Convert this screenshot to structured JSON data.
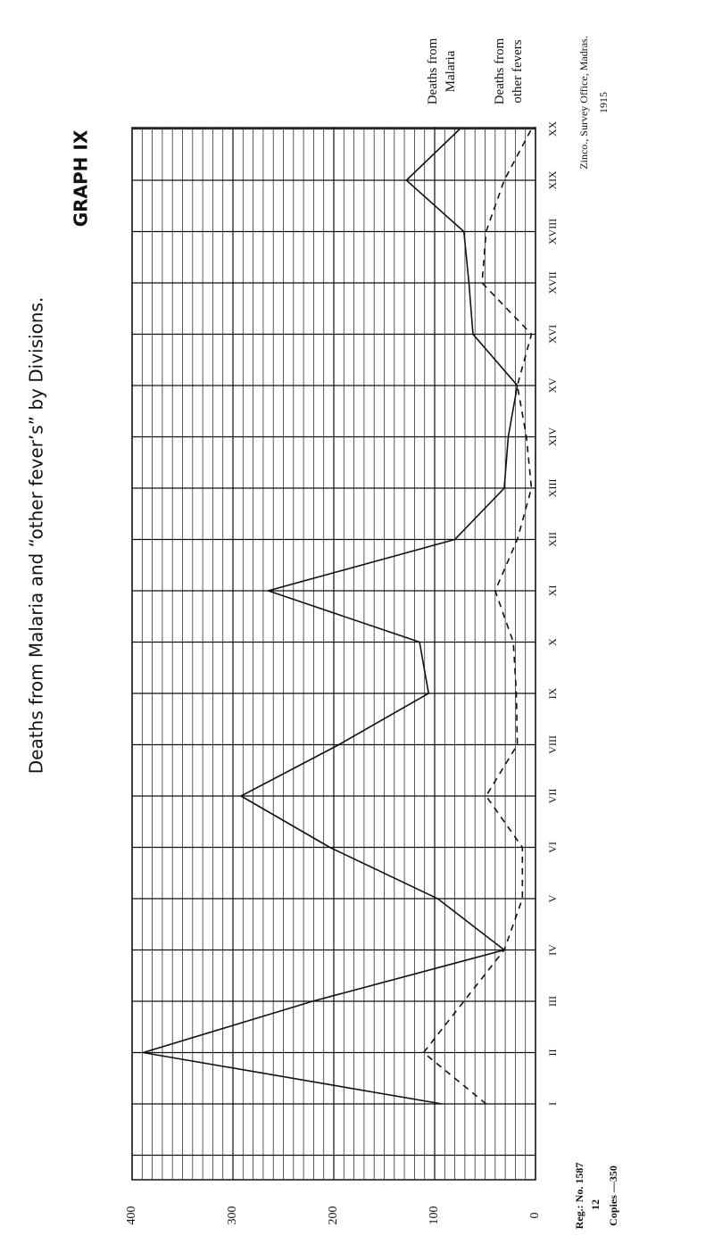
{
  "chart_data": {
    "type": "line",
    "title": "Deaths from Malaria and “other fever’s” by Divisions.",
    "subtitle": "GRAPH IX",
    "categories": [
      "I",
      "II",
      "III",
      "IV",
      "V",
      "VI",
      "VII",
      "VIII",
      "IX",
      "X",
      "XI",
      "XII",
      "XIII",
      "XIV",
      "XV",
      "XVI",
      "XVII",
      "XVIII",
      "XIX",
      "XX"
    ],
    "series": [
      {
        "name": "Deaths from Malaria",
        "color": "#111111",
        "style": "solid",
        "values": [
          93,
          389,
          221,
          31,
          97,
          204,
          292,
          195,
          106,
          115,
          265,
          80,
          31,
          27,
          18,
          62,
          66,
          71,
          128,
          75
        ]
      },
      {
        "name": "Deaths from other fevers",
        "color": "#111111",
        "style": "dashed",
        "values": [
          49,
          111,
          71,
          31,
          13,
          13,
          49,
          18,
          19,
          22,
          40,
          18,
          4,
          9,
          18,
          4,
          53,
          49,
          31,
          4
        ]
      }
    ],
    "ylim": [
      0,
      400
    ],
    "yticks": [
      0,
      100,
      200,
      300,
      400
    ],
    "grid": true,
    "annotations": [
      "Zinco., Survey Office, Madras.",
      "1915",
      "Reg.: No. 1587",
      "12",
      "Copies —350"
    ]
  }
}
